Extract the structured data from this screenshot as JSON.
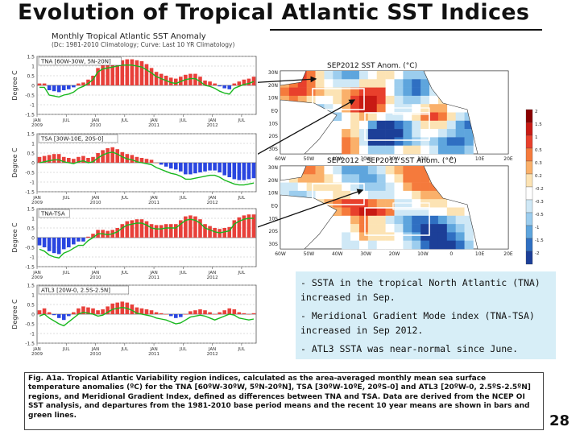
{
  "slide": {
    "title": "Evolution of Tropical Atlantic SST Indices",
    "page_number": "28",
    "bullets": [
      "- SSTA in the tropical North Atlantic (TNA) increased in Sep.",
      "- Meridional Gradient Mode index (TNA-TSA) increased in Sep 2012.",
      "- ATL3 SSTA was near-normal since June."
    ],
    "caption": "Fig. A1a. Tropical Atlantic Variability region indices, calculated as the area-averaged monthly mean sea surface temperature anomalies (ºC) for the TNA [60ºW-30ºW, 5ºN-20ºN], TSA [30ºW-10ºE, 20ºS-0] and ATL3 [20ºW-0, 2.5ºS-2.5ºN] regions, and Meridional Gradient Index, defined as differences between TNA and TSA. Data are derived from the NCEP OI SST analysis, and departures from the 1981-2010 base period means and the recent 10 year means are shown in bars and green lines."
  },
  "colors": {
    "positive": "#e8403a",
    "negative": "#2a46e0",
    "line": "#18b81e",
    "map_box": "#ffffff",
    "summary_bg": "#d7eef7"
  },
  "chart_data": [
    {
      "type": "bar",
      "title": "Monthly Tropical Atlantic SST Anomaly",
      "subtitle": "(Dc: 1981-2010 Climatology; Curve: Last 10 YR Climatology)",
      "ylabel": "Degree C",
      "ylim": [
        -1.5,
        1.5
      ],
      "yticks": [
        "1.5",
        "1",
        "0.5",
        "0",
        "-0.5",
        "-1",
        "-1.5"
      ],
      "x_ticks": [
        {
          "month": 0,
          "label": "JAN",
          "year": "2009"
        },
        {
          "month": 6,
          "label": "JUL",
          "year": ""
        },
        {
          "month": 12,
          "label": "JAN",
          "year": "2010"
        },
        {
          "month": 18,
          "label": "JUL",
          "year": ""
        },
        {
          "month": 24,
          "label": "JAN",
          "year": "2011"
        },
        {
          "month": 30,
          "label": "JUL",
          "year": ""
        },
        {
          "month": 36,
          "label": "JAN",
          "year": "2012"
        },
        {
          "month": 42,
          "label": "JUL",
          "year": ""
        }
      ],
      "series": [
        {
          "label": "TNA [60W-30W, 5N-20N]",
          "bars": [
            0.1,
            0.1,
            -0.25,
            -0.3,
            -0.35,
            -0.25,
            -0.2,
            -0.1,
            0.1,
            0.15,
            0.3,
            0.5,
            0.9,
            1.05,
            1.1,
            1.2,
            1.25,
            1.3,
            1.35,
            1.35,
            1.3,
            1.25,
            1.1,
            0.9,
            0.7,
            0.6,
            0.5,
            0.4,
            0.35,
            0.45,
            0.55,
            0.6,
            0.6,
            0.45,
            0.25,
            0.2,
            0.1,
            -0.05,
            -0.15,
            -0.2,
            0.1,
            0.2,
            0.3,
            0.35,
            0.45
          ],
          "line": [
            -0.1,
            -0.1,
            -0.5,
            -0.55,
            -0.6,
            -0.5,
            -0.45,
            -0.35,
            -0.15,
            -0.05,
            0.1,
            0.3,
            0.7,
            0.85,
            0.9,
            0.95,
            1.0,
            1.05,
            1.05,
            1.05,
            1.0,
            0.95,
            0.8,
            0.65,
            0.45,
            0.35,
            0.25,
            0.15,
            0.1,
            0.2,
            0.3,
            0.35,
            0.35,
            0.2,
            0.0,
            -0.05,
            -0.15,
            -0.3,
            -0.4,
            -0.45,
            -0.15,
            -0.05,
            0.05,
            0.1,
            0.2
          ]
        },
        {
          "label": "TSA [30W-10E, 20S-0]",
          "bars": [
            0.3,
            0.35,
            0.4,
            0.45,
            0.45,
            0.3,
            0.25,
            0.2,
            0.3,
            0.35,
            0.25,
            0.3,
            0.5,
            0.65,
            0.75,
            0.8,
            0.7,
            0.55,
            0.45,
            0.4,
            0.3,
            0.25,
            0.2,
            0.15,
            0.0,
            -0.1,
            -0.2,
            -0.3,
            -0.35,
            -0.45,
            -0.6,
            -0.6,
            -0.55,
            -0.5,
            -0.45,
            -0.4,
            -0.4,
            -0.5,
            -0.65,
            -0.75,
            -0.85,
            -0.9,
            -0.9,
            -0.85,
            -0.8
          ],
          "line": [
            0.0,
            0.05,
            0.1,
            0.15,
            0.15,
            0.05,
            0.0,
            -0.05,
            0.05,
            0.1,
            0.0,
            0.05,
            0.25,
            0.4,
            0.5,
            0.55,
            0.45,
            0.3,
            0.2,
            0.15,
            0.05,
            0.0,
            -0.05,
            -0.1,
            -0.25,
            -0.35,
            -0.45,
            -0.55,
            -0.6,
            -0.7,
            -0.85,
            -0.85,
            -0.8,
            -0.75,
            -0.7,
            -0.65,
            -0.65,
            -0.75,
            -0.9,
            -1.0,
            -1.1,
            -1.15,
            -1.15,
            -1.1,
            -1.05
          ]
        },
        {
          "label": "TNA-TSA",
          "bars": [
            -0.4,
            -0.5,
            -0.7,
            -0.8,
            -0.85,
            -0.6,
            -0.5,
            -0.35,
            -0.2,
            -0.2,
            0.05,
            0.2,
            0.4,
            0.4,
            0.35,
            0.4,
            0.5,
            0.7,
            0.85,
            0.9,
            0.95,
            0.95,
            0.85,
            0.7,
            0.65,
            0.65,
            0.7,
            0.7,
            0.7,
            0.9,
            1.1,
            1.15,
            1.1,
            0.95,
            0.7,
            0.6,
            0.5,
            0.45,
            0.5,
            0.55,
            0.9,
            1.05,
            1.15,
            1.2,
            1.2
          ],
          "line": [
            -0.6,
            -0.7,
            -0.9,
            -1.0,
            -1.05,
            -0.8,
            -0.7,
            -0.55,
            -0.4,
            -0.4,
            -0.15,
            0.0,
            0.2,
            0.2,
            0.15,
            0.2,
            0.3,
            0.5,
            0.65,
            0.7,
            0.75,
            0.75,
            0.65,
            0.5,
            0.45,
            0.45,
            0.5,
            0.5,
            0.5,
            0.7,
            0.9,
            0.95,
            0.9,
            0.75,
            0.5,
            0.4,
            0.3,
            0.25,
            0.3,
            0.35,
            0.7,
            0.85,
            0.95,
            1.0,
            1.0
          ]
        },
        {
          "label": "ATL3 [20W-0, 2.5S-2.5N]",
          "bars": [
            0.2,
            0.3,
            0.1,
            -0.05,
            -0.2,
            -0.3,
            -0.1,
            0.1,
            0.3,
            0.4,
            0.35,
            0.3,
            0.2,
            0.25,
            0.4,
            0.55,
            0.6,
            0.65,
            0.6,
            0.5,
            0.35,
            0.3,
            0.25,
            0.2,
            0.1,
            0.05,
            0.0,
            -0.1,
            -0.2,
            -0.15,
            0.0,
            0.15,
            0.2,
            0.25,
            0.2,
            0.1,
            0.0,
            0.1,
            0.2,
            0.3,
            0.25,
            0.1,
            0.05,
            0.0,
            0.05
          ],
          "line": [
            -0.1,
            0.0,
            -0.2,
            -0.35,
            -0.5,
            -0.6,
            -0.4,
            -0.2,
            0.0,
            0.1,
            0.05,
            0.0,
            -0.1,
            -0.05,
            0.1,
            0.25,
            0.3,
            0.35,
            0.3,
            0.2,
            0.05,
            0.0,
            -0.05,
            -0.1,
            -0.2,
            -0.25,
            -0.3,
            -0.4,
            -0.5,
            -0.45,
            -0.3,
            -0.15,
            -0.1,
            -0.05,
            -0.1,
            -0.2,
            -0.3,
            -0.2,
            -0.1,
            0.0,
            -0.05,
            -0.2,
            -0.25,
            -0.3,
            -0.25
          ]
        }
      ]
    },
    {
      "type": "heatmap",
      "maps": [
        {
          "title": "SEP2012 SST Anom. (°C)",
          "lat_labels": [
            "30N",
            "20N",
            "10N",
            "EQ",
            "10S",
            "20S",
            "30S"
          ],
          "lon_labels": [
            "60W",
            "50W",
            "40W",
            "30W",
            "20W",
            "10W",
            "0",
            "10E",
            "20E"
          ]
        },
        {
          "title": "SEP2012 - SEP2011 SST Anom. (°C)",
          "lat_labels": [
            "30N",
            "20N",
            "10N",
            "EQ",
            "10S",
            "20S",
            "30S"
          ],
          "lon_labels": [
            "60W",
            "50W",
            "40W",
            "30W",
            "20W",
            "10W",
            "0",
            "10E",
            "20E"
          ]
        }
      ],
      "colorbar": [
        "2",
        "1.5",
        "1",
        "0.5",
        "0.3",
        "0.2",
        "-0.2",
        "-0.3",
        "-0.5",
        "-1",
        "-1.5",
        "-2"
      ]
    }
  ]
}
